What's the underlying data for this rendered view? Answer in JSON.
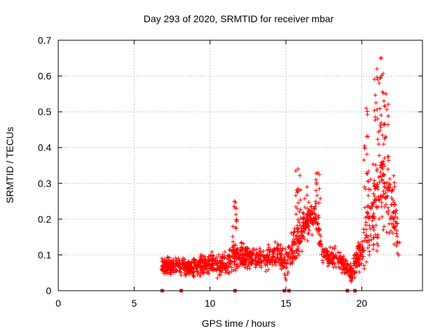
{
  "chart_data": {
    "type": "scatter",
    "title": "Day 293 of 2020, SRMTID for receiver mbar",
    "xlabel": "GPS time / hours",
    "ylabel": "SRMTID / TECUs",
    "xlim": [
      0,
      24
    ],
    "ylim": [
      0,
      0.7
    ],
    "xticks": [
      0,
      5,
      10,
      15,
      20
    ],
    "yticks": [
      0,
      0.1,
      0.2,
      0.3,
      0.4,
      0.5,
      0.6,
      0.7
    ],
    "grid": true,
    "marker": "+",
    "marker_color": "#ff0000",
    "x_range_hours": [
      6.8,
      22.5
    ],
    "point_count": 1500,
    "envelope": [
      {
        "x": 6.8,
        "base": 0.07,
        "spread": 0.035
      },
      {
        "x": 8.0,
        "base": 0.07,
        "spread": 0.035
      },
      {
        "x": 9.0,
        "base": 0.065,
        "spread": 0.04
      },
      {
        "x": 10.0,
        "base": 0.075,
        "spread": 0.045
      },
      {
        "x": 10.9,
        "base": 0.07,
        "spread": 0.05
      },
      {
        "x": 11.5,
        "base": 0.1,
        "spread": 0.06
      },
      {
        "x": 12.5,
        "base": 0.095,
        "spread": 0.04
      },
      {
        "x": 13.5,
        "base": 0.085,
        "spread": 0.045
      },
      {
        "x": 14.5,
        "base": 0.1,
        "spread": 0.05
      },
      {
        "x": 15.0,
        "base": 0.07,
        "spread": 0.06
      },
      {
        "x": 15.8,
        "base": 0.15,
        "spread": 0.09
      },
      {
        "x": 16.5,
        "base": 0.2,
        "spread": 0.06
      },
      {
        "x": 17.0,
        "base": 0.2,
        "spread": 0.07
      },
      {
        "x": 17.5,
        "base": 0.1,
        "spread": 0.04
      },
      {
        "x": 18.5,
        "base": 0.09,
        "spread": 0.04
      },
      {
        "x": 19.3,
        "base": 0.05,
        "spread": 0.04
      },
      {
        "x": 20.0,
        "base": 0.12,
        "spread": 0.08
      },
      {
        "x": 20.5,
        "base": 0.22,
        "spread": 0.16
      },
      {
        "x": 21.0,
        "base": 0.22,
        "spread": 0.2
      },
      {
        "x": 21.3,
        "base": 0.3,
        "spread": 0.27
      },
      {
        "x": 21.8,
        "base": 0.25,
        "spread": 0.17
      },
      {
        "x": 22.5,
        "base": 0.15,
        "spread": 0.1
      }
    ],
    "spikes": [
      {
        "x": 11.6,
        "y": 0.25
      },
      {
        "x": 15.8,
        "y": 0.34
      },
      {
        "x": 16.4,
        "y": 0.29
      },
      {
        "x": 17.1,
        "y": 0.33
      },
      {
        "x": 20.3,
        "y": 0.51
      },
      {
        "x": 21.0,
        "y": 0.62
      },
      {
        "x": 21.3,
        "y": 0.65
      },
      {
        "x": 21.6,
        "y": 0.55
      }
    ],
    "zero_points_x": [
      6.85,
      8.1,
      11.65,
      14.9,
      15.2,
      19.05,
      19.55
    ]
  }
}
